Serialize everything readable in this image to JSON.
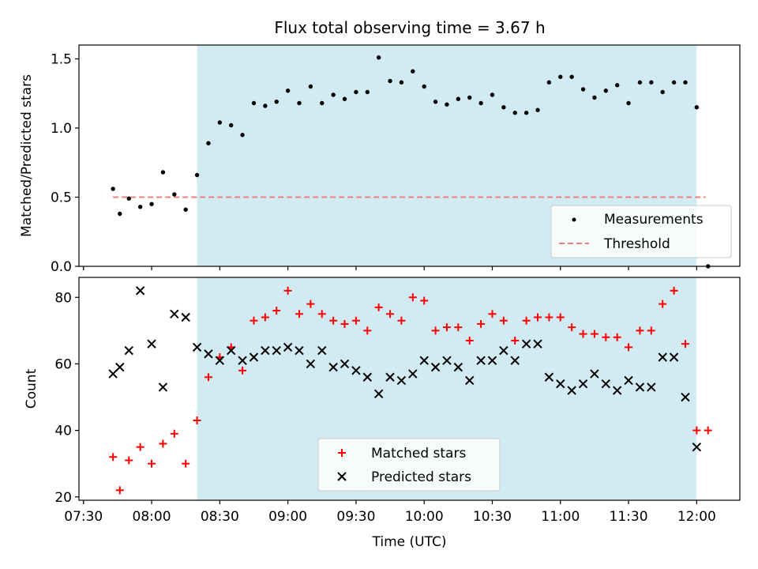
{
  "title": "Flux total observing time = 3.67 h",
  "colors": {
    "shade": "#add8e6",
    "threshold": "#f08080",
    "matched": "#ff0000",
    "predicted": "#000000",
    "measurement": "#000000"
  },
  "chart_data": [
    {
      "type": "scatter",
      "panel": "top",
      "xlabel": "",
      "ylabel": "Matched/Predicted stars",
      "ylim": [
        0,
        1.6
      ],
      "xlim": [
        "07:28",
        "12:19"
      ],
      "yticks": [
        "0.0",
        "0.5",
        "1.0",
        "1.5"
      ],
      "grid": false,
      "legend_position": "lower-right",
      "shaded_interval": [
        "08:20",
        "12:00"
      ],
      "threshold": {
        "name": "Threshold",
        "y": 0.5,
        "x_start": "07:43",
        "x_end": "12:04",
        "style": "dashed"
      },
      "series": [
        {
          "name": "Measurements",
          "marker": "dot",
          "x": [
            "07:43",
            "07:46",
            "07:50",
            "07:55",
            "08:00",
            "08:05",
            "08:10",
            "08:15",
            "08:20",
            "08:25",
            "08:30",
            "08:35",
            "08:40",
            "08:45",
            "08:50",
            "08:55",
            "09:00",
            "09:05",
            "09:10",
            "09:15",
            "09:20",
            "09:25",
            "09:30",
            "09:35",
            "09:40",
            "09:45",
            "09:50",
            "09:55",
            "10:00",
            "10:05",
            "10:10",
            "10:15",
            "10:20",
            "10:25",
            "10:30",
            "10:35",
            "10:40",
            "10:45",
            "10:50",
            "10:55",
            "11:00",
            "11:05",
            "11:10",
            "11:15",
            "11:20",
            "11:25",
            "11:30",
            "11:35",
            "11:40",
            "11:45",
            "11:50",
            "11:55",
            "12:00",
            "12:05"
          ],
          "y": [
            0.56,
            0.38,
            0.49,
            0.43,
            0.45,
            0.68,
            0.52,
            0.41,
            0.66,
            0.89,
            1.04,
            1.02,
            0.95,
            1.18,
            1.16,
            1.19,
            1.27,
            1.18,
            1.3,
            1.18,
            1.24,
            1.21,
            1.26,
            1.26,
            1.51,
            1.34,
            1.33,
            1.41,
            1.3,
            1.19,
            1.17,
            1.21,
            1.22,
            1.18,
            1.24,
            1.15,
            1.11,
            1.11,
            1.13,
            1.33,
            1.37,
            1.37,
            1.28,
            1.22,
            1.27,
            1.31,
            1.18,
            1.33,
            1.33,
            1.26,
            1.33,
            1.33,
            1.15,
            0.0
          ]
        }
      ]
    },
    {
      "type": "scatter",
      "panel": "bottom",
      "xlabel": "Time (UTC)",
      "ylabel": "Count",
      "ylim": [
        19,
        86
      ],
      "xlim": [
        "07:28",
        "12:19"
      ],
      "xticks": [
        "07:30",
        "08:00",
        "08:30",
        "09:00",
        "09:30",
        "10:00",
        "10:30",
        "11:00",
        "11:30",
        "12:00"
      ],
      "yticks": [
        "20",
        "40",
        "60",
        "80"
      ],
      "grid": false,
      "legend_position": "lower-center",
      "shaded_interval": [
        "08:20",
        "12:00"
      ],
      "series": [
        {
          "name": "Matched stars",
          "marker": "plus",
          "x": [
            "07:43",
            "07:46",
            "07:50",
            "07:55",
            "08:00",
            "08:05",
            "08:10",
            "08:15",
            "08:20",
            "08:25",
            "08:30",
            "08:35",
            "08:40",
            "08:45",
            "08:50",
            "08:55",
            "09:00",
            "09:05",
            "09:10",
            "09:15",
            "09:20",
            "09:25",
            "09:30",
            "09:35",
            "09:40",
            "09:45",
            "09:50",
            "09:55",
            "10:00",
            "10:05",
            "10:10",
            "10:15",
            "10:20",
            "10:25",
            "10:30",
            "10:35",
            "10:40",
            "10:45",
            "10:50",
            "10:55",
            "11:00",
            "11:05",
            "11:10",
            "11:15",
            "11:20",
            "11:25",
            "11:30",
            "11:35",
            "11:40",
            "11:45",
            "11:50",
            "11:55",
            "12:00",
            "12:05"
          ],
          "y": [
            32,
            22,
            31,
            35,
            30,
            36,
            39,
            30,
            43,
            56,
            62,
            65,
            58,
            73,
            74,
            76,
            82,
            75,
            78,
            75,
            73,
            72,
            73,
            70,
            77,
            75,
            73,
            80,
            79,
            70,
            71,
            71,
            67,
            72,
            75,
            73,
            67,
            73,
            74,
            74,
            74,
            71,
            69,
            69,
            68,
            68,
            65,
            70,
            70,
            78,
            82,
            66,
            40,
            40
          ]
        },
        {
          "name": "Predicted stars",
          "marker": "x",
          "x": [
            "07:43",
            "07:46",
            "07:50",
            "07:55",
            "08:00",
            "08:05",
            "08:10",
            "08:15",
            "08:20",
            "08:25",
            "08:30",
            "08:35",
            "08:40",
            "08:45",
            "08:50",
            "08:55",
            "09:00",
            "09:05",
            "09:10",
            "09:15",
            "09:20",
            "09:25",
            "09:30",
            "09:35",
            "09:40",
            "09:45",
            "09:50",
            "09:55",
            "10:00",
            "10:05",
            "10:10",
            "10:15",
            "10:20",
            "10:25",
            "10:30",
            "10:35",
            "10:40",
            "10:45",
            "10:50",
            "10:55",
            "11:00",
            "11:05",
            "11:10",
            "11:15",
            "11:20",
            "11:25",
            "11:30",
            "11:35",
            "11:40",
            "11:45",
            "11:50",
            "11:55",
            "12:00"
          ],
          "y": [
            57,
            59,
            64,
            82,
            66,
            53,
            75,
            74,
            65,
            63,
            61,
            64,
            61,
            62,
            64,
            64,
            65,
            64,
            60,
            64,
            59,
            60,
            58,
            56,
            51,
            56,
            55,
            57,
            61,
            59,
            61,
            59,
            55,
            61,
            61,
            64,
            61,
            66,
            66,
            56,
            54,
            52,
            54,
            57,
            54,
            52,
            55,
            53,
            53,
            62,
            62,
            50,
            35
          ]
        }
      ]
    }
  ]
}
